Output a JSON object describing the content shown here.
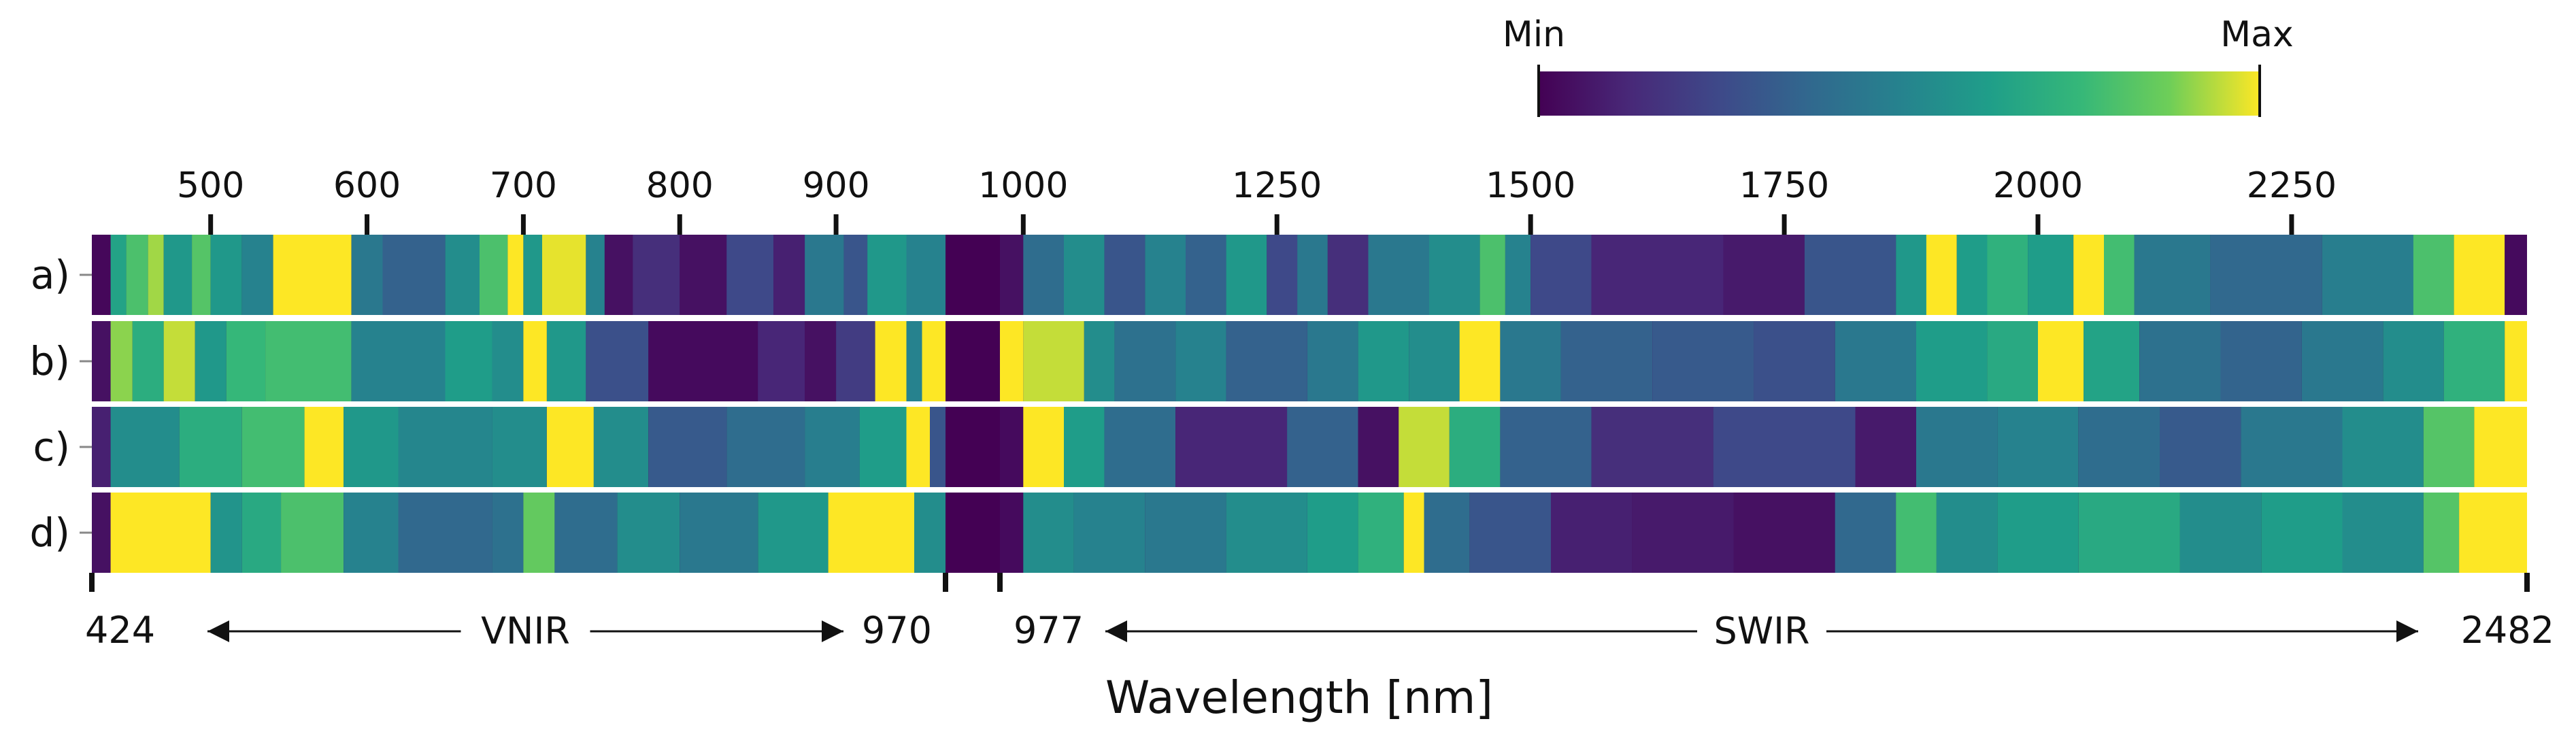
{
  "chart_data": {
    "type": "heatmap",
    "title": "",
    "xlabel": "Wavelength [nm]",
    "colorbar": {
      "min_label": "Min",
      "max_label": "Max",
      "colormap": "viridis"
    },
    "rows": [
      "a)",
      "b)",
      "c)",
      "d)"
    ],
    "regions": [
      {
        "name": "VNIR",
        "start": 424,
        "end": 970,
        "start_label": "424",
        "end_label": "970"
      },
      {
        "name": "SWIR",
        "start": 977,
        "end": 2482,
        "start_label": "977",
        "end_label": "2482"
      }
    ],
    "top_ticks": {
      "vnir": [
        500,
        600,
        700,
        800,
        900
      ],
      "swir": [
        1000,
        1250,
        1500,
        1750,
        2000,
        2250
      ]
    },
    "series": [
      {
        "name": "a)",
        "values": [
          {
            "from": 424,
            "to": 436,
            "v": 0.02
          },
          {
            "from": 436,
            "to": 446,
            "v": 0.65
          },
          {
            "from": 446,
            "to": 460,
            "v": 0.8
          },
          {
            "from": 460,
            "to": 470,
            "v": 0.92
          },
          {
            "from": 470,
            "to": 488,
            "v": 0.6
          },
          {
            "from": 488,
            "to": 500,
            "v": 0.82
          },
          {
            "from": 500,
            "to": 520,
            "v": 0.6
          },
          {
            "from": 520,
            "to": 540,
            "v": 0.5
          },
          {
            "from": 540,
            "to": 590,
            "v": 1.0
          },
          {
            "from": 590,
            "to": 610,
            "v": 0.45
          },
          {
            "from": 610,
            "to": 650,
            "v": 0.35
          },
          {
            "from": 650,
            "to": 672,
            "v": 0.55
          },
          {
            "from": 672,
            "to": 690,
            "v": 0.8
          },
          {
            "from": 690,
            "to": 700,
            "v": 1.0
          },
          {
            "from": 700,
            "to": 712,
            "v": 0.6
          },
          {
            "from": 712,
            "to": 740,
            "v": 0.98
          },
          {
            "from": 740,
            "to": 752,
            "v": 0.5
          },
          {
            "from": 752,
            "to": 770,
            "v": 0.05
          },
          {
            "from": 770,
            "to": 800,
            "v": 0.15
          },
          {
            "from": 800,
            "to": 830,
            "v": 0.05
          },
          {
            "from": 830,
            "to": 860,
            "v": 0.25
          },
          {
            "from": 860,
            "to": 880,
            "v": 0.1
          },
          {
            "from": 880,
            "to": 905,
            "v": 0.45
          },
          {
            "from": 905,
            "to": 920,
            "v": 0.3
          },
          {
            "from": 920,
            "to": 945,
            "v": 0.6
          },
          {
            "from": 945,
            "to": 970,
            "v": 0.5
          },
          {
            "from": 977,
            "to": 1000,
            "v": 0.05
          },
          {
            "from": 1000,
            "to": 1040,
            "v": 0.4
          },
          {
            "from": 1040,
            "to": 1080,
            "v": 0.55
          },
          {
            "from": 1080,
            "to": 1120,
            "v": 0.3
          },
          {
            "from": 1120,
            "to": 1160,
            "v": 0.5
          },
          {
            "from": 1160,
            "to": 1200,
            "v": 0.35
          },
          {
            "from": 1200,
            "to": 1240,
            "v": 0.6
          },
          {
            "from": 1240,
            "to": 1270,
            "v": 0.25
          },
          {
            "from": 1270,
            "to": 1300,
            "v": 0.45
          },
          {
            "from": 1300,
            "to": 1340,
            "v": 0.15
          },
          {
            "from": 1340,
            "to": 1400,
            "v": 0.45
          },
          {
            "from": 1400,
            "to": 1450,
            "v": 0.55
          },
          {
            "from": 1450,
            "to": 1475,
            "v": 0.8
          },
          {
            "from": 1475,
            "to": 1500,
            "v": 0.5
          },
          {
            "from": 1500,
            "to": 1560,
            "v": 0.25
          },
          {
            "from": 1560,
            "to": 1690,
            "v": 0.12
          },
          {
            "from": 1690,
            "to": 1770,
            "v": 0.08
          },
          {
            "from": 1770,
            "to": 1860,
            "v": 0.3
          },
          {
            "from": 1860,
            "to": 1890,
            "v": 0.6
          },
          {
            "from": 1890,
            "to": 1920,
            "v": 1.0
          },
          {
            "from": 1920,
            "to": 1950,
            "v": 0.62
          },
          {
            "from": 1950,
            "to": 1990,
            "v": 0.72
          },
          {
            "from": 1990,
            "to": 2035,
            "v": 0.62
          },
          {
            "from": 2035,
            "to": 2065,
            "v": 1.0
          },
          {
            "from": 2065,
            "to": 2095,
            "v": 0.78
          },
          {
            "from": 2095,
            "to": 2170,
            "v": 0.45
          },
          {
            "from": 2170,
            "to": 2280,
            "v": 0.38
          },
          {
            "from": 2280,
            "to": 2370,
            "v": 0.48
          },
          {
            "from": 2370,
            "to": 2410,
            "v": 0.8
          },
          {
            "from": 2410,
            "to": 2460,
            "v": 1.0
          },
          {
            "from": 2460,
            "to": 2482,
            "v": 0.03
          }
        ]
      },
      {
        "name": "b)",
        "values": [
          {
            "from": 424,
            "to": 436,
            "v": 0.05
          },
          {
            "from": 436,
            "to": 450,
            "v": 0.9
          },
          {
            "from": 450,
            "to": 470,
            "v": 0.7
          },
          {
            "from": 470,
            "to": 490,
            "v": 0.95
          },
          {
            "from": 490,
            "to": 510,
            "v": 0.6
          },
          {
            "from": 510,
            "to": 535,
            "v": 0.75
          },
          {
            "from": 535,
            "to": 590,
            "v": 0.78
          },
          {
            "from": 590,
            "to": 650,
            "v": 0.5
          },
          {
            "from": 650,
            "to": 680,
            "v": 0.62
          },
          {
            "from": 680,
            "to": 700,
            "v": 0.55
          },
          {
            "from": 700,
            "to": 715,
            "v": 1.0
          },
          {
            "from": 715,
            "to": 740,
            "v": 0.6
          },
          {
            "from": 740,
            "to": 780,
            "v": 0.28
          },
          {
            "from": 780,
            "to": 850,
            "v": 0.03
          },
          {
            "from": 850,
            "to": 880,
            "v": 0.12
          },
          {
            "from": 880,
            "to": 900,
            "v": 0.05
          },
          {
            "from": 900,
            "to": 925,
            "v": 0.2
          },
          {
            "from": 925,
            "to": 945,
            "v": 1.0
          },
          {
            "from": 945,
            "to": 955,
            "v": 0.5
          },
          {
            "from": 955,
            "to": 970,
            "v": 1.0
          },
          {
            "from": 977,
            "to": 1000,
            "v": 1.0
          },
          {
            "from": 1000,
            "to": 1060,
            "v": 0.95
          },
          {
            "from": 1060,
            "to": 1090,
            "v": 0.55
          },
          {
            "from": 1090,
            "to": 1150,
            "v": 0.42
          },
          {
            "from": 1150,
            "to": 1200,
            "v": 0.5
          },
          {
            "from": 1200,
            "to": 1280,
            "v": 0.35
          },
          {
            "from": 1280,
            "to": 1330,
            "v": 0.45
          },
          {
            "from": 1330,
            "to": 1380,
            "v": 0.6
          },
          {
            "from": 1380,
            "to": 1430,
            "v": 0.55
          },
          {
            "from": 1430,
            "to": 1470,
            "v": 1.0
          },
          {
            "from": 1470,
            "to": 1530,
            "v": 0.45
          },
          {
            "from": 1530,
            "to": 1620,
            "v": 0.35
          },
          {
            "from": 1620,
            "to": 1720,
            "v": 0.32
          },
          {
            "from": 1720,
            "to": 1800,
            "v": 0.28
          },
          {
            "from": 1800,
            "to": 1880,
            "v": 0.45
          },
          {
            "from": 1880,
            "to": 1950,
            "v": 0.62
          },
          {
            "from": 1950,
            "to": 2000,
            "v": 0.68
          },
          {
            "from": 2000,
            "to": 2045,
            "v": 1.0
          },
          {
            "from": 2045,
            "to": 2100,
            "v": 0.65
          },
          {
            "from": 2100,
            "to": 2180,
            "v": 0.42
          },
          {
            "from": 2180,
            "to": 2260,
            "v": 0.36
          },
          {
            "from": 2260,
            "to": 2340,
            "v": 0.45
          },
          {
            "from": 2340,
            "to": 2400,
            "v": 0.55
          },
          {
            "from": 2400,
            "to": 2460,
            "v": 0.72
          },
          {
            "from": 2460,
            "to": 2482,
            "v": 1.0
          }
        ]
      },
      {
        "name": "c)",
        "values": [
          {
            "from": 424,
            "to": 436,
            "v": 0.1
          },
          {
            "from": 436,
            "to": 480,
            "v": 0.55
          },
          {
            "from": 480,
            "to": 520,
            "v": 0.7
          },
          {
            "from": 520,
            "to": 560,
            "v": 0.78
          },
          {
            "from": 560,
            "to": 585,
            "v": 1.0
          },
          {
            "from": 585,
            "to": 620,
            "v": 0.6
          },
          {
            "from": 620,
            "to": 680,
            "v": 0.52
          },
          {
            "from": 680,
            "to": 715,
            "v": 0.55
          },
          {
            "from": 715,
            "to": 745,
            "v": 1.0
          },
          {
            "from": 745,
            "to": 780,
            "v": 0.55
          },
          {
            "from": 780,
            "to": 830,
            "v": 0.32
          },
          {
            "from": 830,
            "to": 880,
            "v": 0.4
          },
          {
            "from": 880,
            "to": 915,
            "v": 0.48
          },
          {
            "from": 915,
            "to": 945,
            "v": 0.62
          },
          {
            "from": 945,
            "to": 960,
            "v": 1.0
          },
          {
            "from": 960,
            "to": 970,
            "v": 0.3
          },
          {
            "from": 977,
            "to": 1000,
            "v": 0.03
          },
          {
            "from": 1000,
            "to": 1040,
            "v": 1.0
          },
          {
            "from": 1040,
            "to": 1080,
            "v": 0.62
          },
          {
            "from": 1080,
            "to": 1150,
            "v": 0.4
          },
          {
            "from": 1150,
            "to": 1260,
            "v": 0.12
          },
          {
            "from": 1260,
            "to": 1330,
            "v": 0.35
          },
          {
            "from": 1330,
            "to": 1370,
            "v": 0.05
          },
          {
            "from": 1370,
            "to": 1420,
            "v": 0.95
          },
          {
            "from": 1420,
            "to": 1470,
            "v": 0.7
          },
          {
            "from": 1470,
            "to": 1560,
            "v": 0.35
          },
          {
            "from": 1560,
            "to": 1680,
            "v": 0.15
          },
          {
            "from": 1680,
            "to": 1820,
            "v": 0.25
          },
          {
            "from": 1820,
            "to": 1880,
            "v": 0.08
          },
          {
            "from": 1880,
            "to": 1960,
            "v": 0.45
          },
          {
            "from": 1960,
            "to": 2040,
            "v": 0.5
          },
          {
            "from": 2040,
            "to": 2120,
            "v": 0.4
          },
          {
            "from": 2120,
            "to": 2200,
            "v": 0.32
          },
          {
            "from": 2200,
            "to": 2300,
            "v": 0.45
          },
          {
            "from": 2300,
            "to": 2380,
            "v": 0.55
          },
          {
            "from": 2380,
            "to": 2430,
            "v": 0.82
          },
          {
            "from": 2430,
            "to": 2482,
            "v": 1.0
          }
        ]
      },
      {
        "name": "d)",
        "values": [
          {
            "from": 424,
            "to": 436,
            "v": 0.05
          },
          {
            "from": 436,
            "to": 500,
            "v": 1.0
          },
          {
            "from": 500,
            "to": 520,
            "v": 0.58
          },
          {
            "from": 520,
            "to": 545,
            "v": 0.68
          },
          {
            "from": 545,
            "to": 585,
            "v": 0.8
          },
          {
            "from": 585,
            "to": 620,
            "v": 0.5
          },
          {
            "from": 620,
            "to": 680,
            "v": 0.38
          },
          {
            "from": 680,
            "to": 700,
            "v": 0.42
          },
          {
            "from": 700,
            "to": 720,
            "v": 0.85
          },
          {
            "from": 720,
            "to": 760,
            "v": 0.4
          },
          {
            "from": 760,
            "to": 800,
            "v": 0.55
          },
          {
            "from": 800,
            "to": 850,
            "v": 0.45
          },
          {
            "from": 850,
            "to": 895,
            "v": 0.6
          },
          {
            "from": 895,
            "to": 950,
            "v": 1.0
          },
          {
            "from": 950,
            "to": 970,
            "v": 0.55
          },
          {
            "from": 977,
            "to": 1000,
            "v": 0.03
          },
          {
            "from": 1000,
            "to": 1050,
            "v": 0.55
          },
          {
            "from": 1050,
            "to": 1120,
            "v": 0.5
          },
          {
            "from": 1120,
            "to": 1200,
            "v": 0.45
          },
          {
            "from": 1200,
            "to": 1280,
            "v": 0.55
          },
          {
            "from": 1280,
            "to": 1330,
            "v": 0.62
          },
          {
            "from": 1330,
            "to": 1375,
            "v": 0.72
          },
          {
            "from": 1375,
            "to": 1395,
            "v": 1.0
          },
          {
            "from": 1395,
            "to": 1440,
            "v": 0.4
          },
          {
            "from": 1440,
            "to": 1520,
            "v": 0.3
          },
          {
            "from": 1520,
            "to": 1600,
            "v": 0.1
          },
          {
            "from": 1600,
            "to": 1700,
            "v": 0.08
          },
          {
            "from": 1700,
            "to": 1800,
            "v": 0.05
          },
          {
            "from": 1800,
            "to": 1860,
            "v": 0.38
          },
          {
            "from": 1860,
            "to": 1900,
            "v": 0.78
          },
          {
            "from": 1900,
            "to": 1960,
            "v": 0.55
          },
          {
            "from": 1960,
            "to": 2040,
            "v": 0.62
          },
          {
            "from": 2040,
            "to": 2140,
            "v": 0.68
          },
          {
            "from": 2140,
            "to": 2220,
            "v": 0.55
          },
          {
            "from": 2220,
            "to": 2300,
            "v": 0.62
          },
          {
            "from": 2300,
            "to": 2380,
            "v": 0.55
          },
          {
            "from": 2380,
            "to": 2415,
            "v": 0.82
          },
          {
            "from": 2415,
            "to": 2482,
            "v": 1.0
          }
        ]
      }
    ]
  }
}
